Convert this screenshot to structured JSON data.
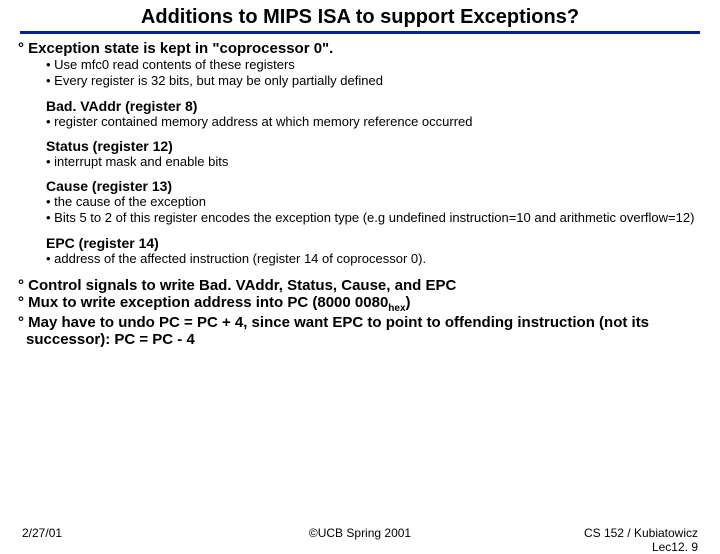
{
  "title": "Additions to MIPS ISA to support Exceptions?",
  "sec1": {
    "h": "° Exception state is kept in \"coprocessor 0\".",
    "b1": "•  Use mfc0 read contents of these registers",
    "b2": "•  Every register is 32 bits, but may be only partially defined",
    "r8": "Bad. VAddr (register 8)",
    "r8b": "•  register contained memory address at which memory reference occurred",
    "r12": "Status (register 12)",
    "r12b": "•  interrupt mask and enable bits",
    "r13": "Cause (register 13)",
    "r13b1": "•  the cause of the exception",
    "r13b2": "•  Bits 5 to 2 of this register encodes the exception type (e.g  undefined instruction=10 and arithmetic overflow=12)",
    "r14": "EPC (register 14)",
    "r14b": "•  address of the affected instruction (register 14 of coprocessor 0)."
  },
  "sec2": "° Control signals to write Bad. VAddr, Status, Cause, and EPC",
  "sec3a": "° Mux to write exception address into PC (8000 0080",
  "sec3b": ")",
  "sec3sub": "hex",
  "sec4": "° May have to undo PC = PC + 4, since want EPC to point to offending instruction (not its successor): PC = PC - 4",
  "footer": {
    "left": "2/27/01",
    "center": "©UCB Spring 2001",
    "right1": "CS 152 / Kubiatowicz",
    "right2": "Lec12. 9"
  }
}
